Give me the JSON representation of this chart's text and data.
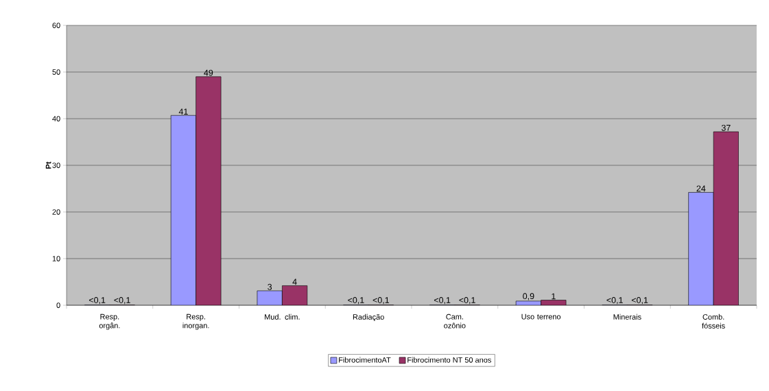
{
  "chart_data": {
    "type": "bar",
    "ylabel": "Pt",
    "categories": [
      "Resp. orgân.",
      "Resp. inorgan.",
      "Mud. clim.",
      "Radiação",
      "Cam. ozônio",
      "Uso terreno",
      "Minerais",
      "Comb. fósseis"
    ],
    "series": [
      {
        "name": "FibrocimentoAT",
        "color": "#9999ff",
        "values": [
          0.05,
          40.7,
          3.1,
          0.05,
          0.05,
          0.9,
          0.05,
          24.2
        ],
        "value_labels": [
          "<0,1",
          "41",
          "3",
          "<0,1",
          "<0,1",
          "0,9",
          "<0,1",
          "24"
        ]
      },
      {
        "name": "Fibrocimento NT 50 anos",
        "color": "#993366",
        "values": [
          0.05,
          49,
          4.2,
          0.05,
          0.05,
          1.1,
          0.05,
          37.2
        ],
        "value_labels": [
          "<0,1",
          "49",
          "4",
          "<0,1",
          "<0,1",
          "1",
          "<0,1",
          "37"
        ]
      }
    ],
    "ylim": [
      0,
      60
    ],
    "yticks": [
      0,
      10,
      20,
      30,
      40,
      50,
      60
    ],
    "grid": "y",
    "legend": "bottom"
  }
}
